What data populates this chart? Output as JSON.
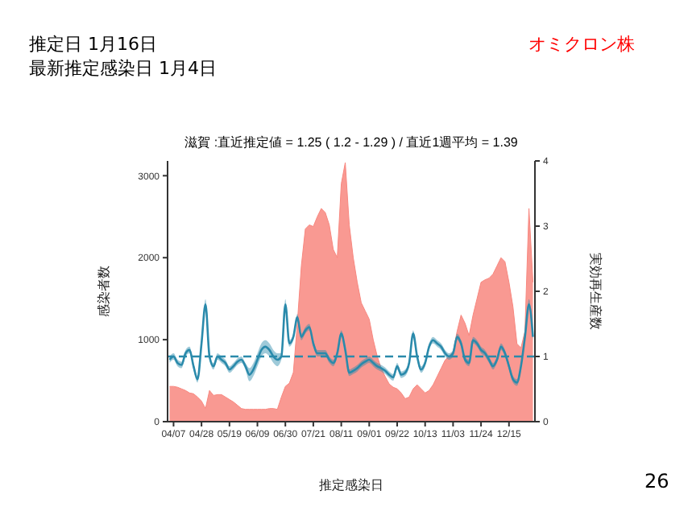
{
  "chart_data": {
    "type": "area",
    "title": "滋賀 :直近推定値 = 1.25 ( 1.2 - 1.29 ) / 直近1週平均 = 1.39",
    "xlabel": "推定感染日",
    "ylabel": "感染者数",
    "y2label": "実効再生産数",
    "annotations": [
      "推定日  1月16日",
      "最新推定感染日  1月4日",
      "オミクロン株",
      "26"
    ],
    "categories": [
      null,
      "04/07",
      null,
      null,
      null,
      null,
      null,
      null,
      "04/28",
      null,
      null,
      null,
      null,
      null,
      null,
      "05/19",
      null,
      null,
      null,
      null,
      null,
      null,
      "06/09",
      null,
      null,
      null,
      null,
      null,
      null,
      "06/30",
      null,
      null,
      null,
      null,
      null,
      null,
      "07/21",
      null,
      null,
      null,
      null,
      null,
      null,
      "08/11",
      null,
      null,
      null,
      null,
      null,
      null,
      "09/01",
      null,
      null,
      null,
      null,
      null,
      null,
      "09/22",
      null,
      null,
      null,
      null,
      null,
      null,
      "10/13",
      null,
      null,
      null,
      null,
      null,
      null,
      "11/03",
      null,
      null,
      null,
      null,
      null,
      null,
      "11/24",
      null,
      null,
      null,
      null,
      null,
      null,
      "12/15",
      null,
      null,
      null,
      null,
      null,
      null
    ],
    "series": [
      {
        "color": "#f8877f",
        "values": [
          430,
          430,
          420,
          400,
          380,
          350,
          340,
          300,
          250,
          160,
          380,
          320,
          330,
          330,
          300,
          270,
          240,
          200,
          160,
          150,
          150,
          150,
          150,
          150,
          150,
          160,
          160,
          150,
          300,
          430,
          470,
          600,
          1200,
          1900,
          2350,
          2400,
          2380,
          2500,
          2600,
          2550,
          2400,
          2100,
          2000,
          2900,
          3160,
          2400,
          2000,
          1700,
          1450,
          1350,
          1250,
          1000,
          800,
          650,
          550,
          460,
          420,
          400,
          350,
          280,
          300,
          400,
          450,
          400,
          350,
          380,
          450,
          550,
          650,
          750,
          800,
          850,
          1100,
          1300,
          1200,
          1050,
          1300,
          1500,
          1700,
          1730,
          1750,
          1800,
          1900,
          2000,
          1950,
          1700,
          1400,
          950,
          900,
          1100,
          2600,
          1700
        ]
      },
      {
        "type": "line",
        "axis": "y2",
        "color": "#2a8aab",
        "values": [
          0.95,
          1.0,
          0.9,
          0.87,
          1.05,
          1.1,
          0.85,
          0.65,
          1.2,
          1.8,
          1.0,
          0.85,
          1.0,
          0.95,
          0.9,
          0.8,
          0.85,
          0.92,
          0.95,
          0.85,
          0.72,
          0.8,
          0.95,
          1.1,
          1.15,
          1.1,
          1.0,
          0.95,
          1.0,
          1.8,
          1.2,
          1.3,
          1.6,
          1.3,
          1.4,
          1.45,
          1.2,
          1.05,
          1.05,
          1.05,
          0.95,
          0.9,
          1.05,
          1.35,
          1.1,
          0.75,
          0.78,
          0.82,
          0.88,
          0.92,
          0.95,
          0.9,
          0.85,
          0.82,
          0.78,
          0.72,
          0.68,
          0.85,
          0.72,
          0.75,
          0.9,
          1.35,
          1.0,
          0.8,
          0.9,
          1.15,
          1.25,
          1.2,
          1.15,
          1.05,
          1.0,
          1.05,
          1.3,
          1.2,
          0.95,
          0.9,
          1.25,
          1.2,
          1.1,
          1.05,
          0.95,
          0.85,
          0.95,
          1.15,
          1.05,
          0.85,
          0.65,
          0.6,
          0.85,
          1.3,
          1.8,
          1.3
        ],
        "lower": [
          0.9,
          0.95,
          0.85,
          0.82,
          1.0,
          1.05,
          0.8,
          0.6,
          1.15,
          1.72,
          0.95,
          0.8,
          0.95,
          0.9,
          0.85,
          0.75,
          0.8,
          0.87,
          0.9,
          0.8,
          0.62,
          0.7,
          0.85,
          1.0,
          1.05,
          1.0,
          0.9,
          0.85,
          0.95,
          1.72,
          1.15,
          1.25,
          1.55,
          1.25,
          1.35,
          1.4,
          1.15,
          1.0,
          1.0,
          1.0,
          0.9,
          0.85,
          1.0,
          1.3,
          1.05,
          0.7,
          0.73,
          0.77,
          0.83,
          0.87,
          0.9,
          0.85,
          0.8,
          0.77,
          0.73,
          0.67,
          0.63,
          0.8,
          0.67,
          0.7,
          0.85,
          1.3,
          0.95,
          0.75,
          0.85,
          1.1,
          1.2,
          1.15,
          1.1,
          1.0,
          0.95,
          1.0,
          1.25,
          1.15,
          0.9,
          0.85,
          1.2,
          1.15,
          1.05,
          1.0,
          0.9,
          0.8,
          0.9,
          1.1,
          1.0,
          0.8,
          0.6,
          0.55,
          0.8,
          1.25,
          1.72,
          1.25
        ],
        "upper": [
          1.0,
          1.05,
          0.95,
          0.92,
          1.1,
          1.15,
          0.9,
          0.7,
          1.25,
          1.88,
          1.05,
          0.9,
          1.05,
          1.0,
          0.95,
          0.85,
          0.9,
          0.97,
          1.0,
          0.9,
          0.82,
          0.9,
          1.05,
          1.2,
          1.25,
          1.2,
          1.1,
          1.05,
          1.05,
          1.88,
          1.25,
          1.35,
          1.65,
          1.35,
          1.45,
          1.5,
          1.25,
          1.1,
          1.1,
          1.1,
          1.0,
          0.95,
          1.1,
          1.4,
          1.15,
          0.8,
          0.83,
          0.87,
          0.93,
          0.97,
          1.0,
          0.95,
          0.9,
          0.87,
          0.83,
          0.77,
          0.73,
          0.9,
          0.77,
          0.8,
          0.95,
          1.4,
          1.05,
          0.85,
          0.95,
          1.2,
          1.3,
          1.25,
          1.2,
          1.1,
          1.05,
          1.1,
          1.35,
          1.25,
          1.0,
          0.95,
          1.3,
          1.25,
          1.15,
          1.1,
          1.0,
          0.9,
          1.0,
          1.2,
          1.1,
          0.9,
          0.7,
          0.65,
          0.9,
          1.35,
          1.88,
          1.35
        ]
      }
    ],
    "ylim": [
      0,
      3180
    ],
    "yticks": [
      0,
      1000,
      2000,
      3000
    ],
    "y2lim": [
      0,
      4
    ],
    "y2ticks": [
      0,
      1,
      2,
      3,
      4
    ],
    "ref_lines": [
      {
        "axis": "y2",
        "value": 1,
        "color": "#2a8aab",
        "line_style": "dashed"
      }
    ],
    "grid": false,
    "legend": false
  }
}
